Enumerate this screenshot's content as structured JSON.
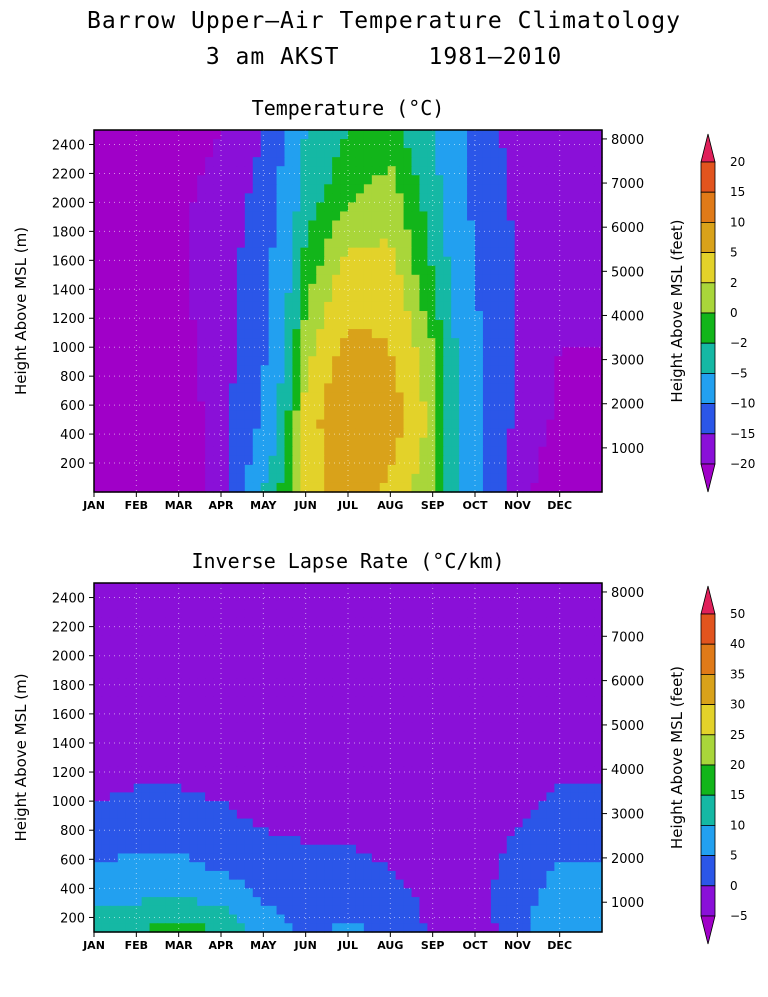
{
  "title": "Barrow Upper–Air Temperature Climatology",
  "subtitle_left": "3 am AKST",
  "subtitle_right": "1981–2010",
  "chart_data": [
    {
      "type": "heatmap",
      "title": "Temperature (°C)",
      "ylabel": "Height Above MSL (m)",
      "ylabel_right": "Height Above MSL (feet)",
      "x_ticks": [
        "JAN",
        "FEB",
        "MAR",
        "APR",
        "MAY",
        "JUN",
        "JUL",
        "AUG",
        "SEP",
        "OCT",
        "NOV",
        "DEC"
      ],
      "y_ticks": [
        200,
        400,
        600,
        800,
        1000,
        1200,
        1400,
        1600,
        1800,
        2000,
        2200,
        2400
      ],
      "y_ticks_right": [
        1000,
        2000,
        3000,
        4000,
        5000,
        6000,
        7000,
        8000
      ],
      "ylim": [
        0,
        2500
      ],
      "grid": true,
      "colorbar": {
        "labels": [
          "20",
          "15",
          "10",
          "5",
          "2",
          "0",
          "−2",
          "−5",
          "−10",
          "−15",
          "−20"
        ],
        "colors": [
          "#e0205a",
          "#e2541e",
          "#e07a18",
          "#d9a21a",
          "#e3d22a",
          "#a9d63a",
          "#12b51a",
          "#15b8a4",
          "#22a0f0",
          "#2b56e8",
          "#8a10d8",
          "#a000c8"
        ]
      },
      "field": {
        "months": [
          1,
          2,
          3,
          4,
          5,
          6,
          7,
          8,
          9,
          10,
          11,
          12
        ],
        "heights": [
          0,
          500,
          1000,
          1500,
          2000,
          2500
        ],
        "values": [
          [
            -29,
            -25,
            -23,
            -21,
            -22,
            -23
          ],
          [
            -29,
            -25,
            -23,
            -22,
            -22,
            -23
          ],
          [
            -27,
            -24,
            -22,
            -21,
            -21,
            -22
          ],
          [
            -17,
            -17,
            -17,
            -17,
            -18,
            -20
          ],
          [
            -5,
            -9,
            -11,
            -12,
            -13,
            -15
          ],
          [
            3,
            3,
            1,
            -1,
            -3,
            -5
          ],
          [
            7,
            9,
            6,
            3,
            0,
            -2
          ],
          [
            4,
            7,
            5,
            3,
            1,
            -1
          ],
          [
            0,
            1,
            0,
            -2,
            -3,
            -5
          ],
          [
            -8,
            -8,
            -9,
            -10,
            -11,
            -12
          ],
          [
            -18,
            -16,
            -15,
            -15,
            -16,
            -17
          ],
          [
            -24,
            -21,
            -20,
            -19,
            -19,
            -20
          ]
        ]
      }
    },
    {
      "type": "heatmap",
      "title": "Inverse Lapse Rate (°C/km)",
      "ylabel": "Height Above MSL (m)",
      "ylabel_right": "Height Above MSL (feet)",
      "x_ticks": [
        "JAN",
        "FEB",
        "MAR",
        "APR",
        "MAY",
        "JUN",
        "JUL",
        "AUG",
        "SEP",
        "OCT",
        "NOV",
        "DEC"
      ],
      "y_ticks": [
        200,
        400,
        600,
        800,
        1000,
        1200,
        1400,
        1600,
        1800,
        2000,
        2200,
        2400
      ],
      "y_ticks_right": [
        1000,
        2000,
        3000,
        4000,
        5000,
        6000,
        7000,
        8000
      ],
      "ylim": [
        100,
        2500
      ],
      "grid": true,
      "colorbar": {
        "labels": [
          "50",
          "40",
          "35",
          "30",
          "25",
          "20",
          "15",
          "10",
          "5",
          "0",
          "−5"
        ],
        "colors": [
          "#e0205a",
          "#e2541e",
          "#e07a18",
          "#d9a21a",
          "#e3d22a",
          "#a9d63a",
          "#12b51a",
          "#15b8a4",
          "#22a0f0",
          "#2b56e8",
          "#8a10d8",
          "#a000c8"
        ]
      },
      "field": {
        "months": [
          1,
          2,
          3,
          4,
          5,
          6,
          7,
          8,
          9,
          10,
          11,
          12
        ],
        "heights": [
          100,
          300,
          500,
          700,
          900,
          1100,
          1300,
          2500
        ],
        "values": [
          [
            14,
            9,
            6,
            3,
            1,
            -1,
            -2,
            -3
          ],
          [
            15,
            10,
            7,
            4,
            2,
            0,
            -2,
            -3
          ],
          [
            17,
            11,
            7,
            4,
            2,
            0,
            -2,
            -3
          ],
          [
            15,
            9,
            5,
            3,
            1,
            -1,
            -2,
            -3
          ],
          [
            8,
            5,
            3,
            1,
            -1,
            -2,
            -3,
            -4
          ],
          [
            4,
            3,
            2,
            0,
            -1,
            -2,
            -3,
            -4
          ],
          [
            6,
            4,
            2,
            0,
            -1,
            -2,
            -3,
            -4
          ],
          [
            4,
            2,
            0,
            -1,
            -2,
            -3,
            -3,
            -4
          ],
          [
            -1,
            -1,
            -2,
            -2,
            -3,
            -3,
            -3,
            -4
          ],
          [
            -2,
            -2,
            -2,
            -3,
            -3,
            -3,
            -3,
            -4
          ],
          [
            2,
            3,
            2,
            1,
            -1,
            -2,
            -3,
            -4
          ],
          [
            10,
            8,
            6,
            4,
            2,
            0,
            -2,
            -3
          ]
        ]
      }
    }
  ]
}
